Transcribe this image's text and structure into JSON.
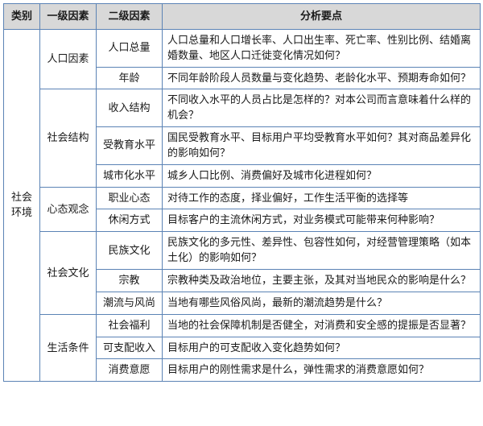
{
  "headers": {
    "category": "类别",
    "level1": "一级因素",
    "level2": "二级因素",
    "points": "分析要点"
  },
  "category": "社会环境",
  "groups": [
    {
      "level1": "人口因素",
      "rows": [
        {
          "level2": "人口总量",
          "points": "人口总量和人口增长率、人口出生率、死亡率、性别比例、结婚离婚数量、地区人口迁徙变化情况如何？"
        },
        {
          "level2": "年龄",
          "points": "不同年龄阶段人员数量与变化趋势、老龄化水平、预期寿命如何？"
        }
      ]
    },
    {
      "level1": "社会结构",
      "rows": [
        {
          "level2": "收入结构",
          "points": "不同收入水平的人员占比是怎样的？对本公司而言意味着什么样的机会？"
        },
        {
          "level2": "受教育水平",
          "points": "国民受教育水平、目标用户平均受教育水平如何？其对商品差异化的影响如何？"
        },
        {
          "level2": "城市化水平",
          "points": "城乡人口比例、消费偏好及城市化进程如何？"
        }
      ]
    },
    {
      "level1": "心态观念",
      "rows": [
        {
          "level2": "职业心态",
          "points": "对待工作的态度，择业偏好，工作生活平衡的选择等"
        },
        {
          "level2": "休闲方式",
          "points": "目标客户的主流休闲方式，对业务模式可能带来何种影响？"
        }
      ]
    },
    {
      "level1": "社会文化",
      "rows": [
        {
          "level2": "民族文化",
          "points": "民族文化的多元性、差异性、包容性如何，对经营管理策略（如本土化）的影响如何？"
        },
        {
          "level2": "宗教",
          "points": "宗教种类及政治地位，主要主张，及其对当地民众的影响是什么？"
        },
        {
          "level2": "潮流与风尚",
          "points": "当地有哪些风俗风尚，最新的潮流趋势是什么？"
        }
      ]
    },
    {
      "level1": "生活条件",
      "rows": [
        {
          "level2": "社会福利",
          "points": "当地的社会保障机制是否健全，对消费和安全感的提振是否显著？"
        },
        {
          "level2": "可支配收入",
          "points": "目标用户的可支配收入变化趋势如何？"
        },
        {
          "level2": "消费意愿",
          "points": "目标用户的刚性需求是什么，弹性需求的消费意愿如何？"
        }
      ]
    }
  ]
}
